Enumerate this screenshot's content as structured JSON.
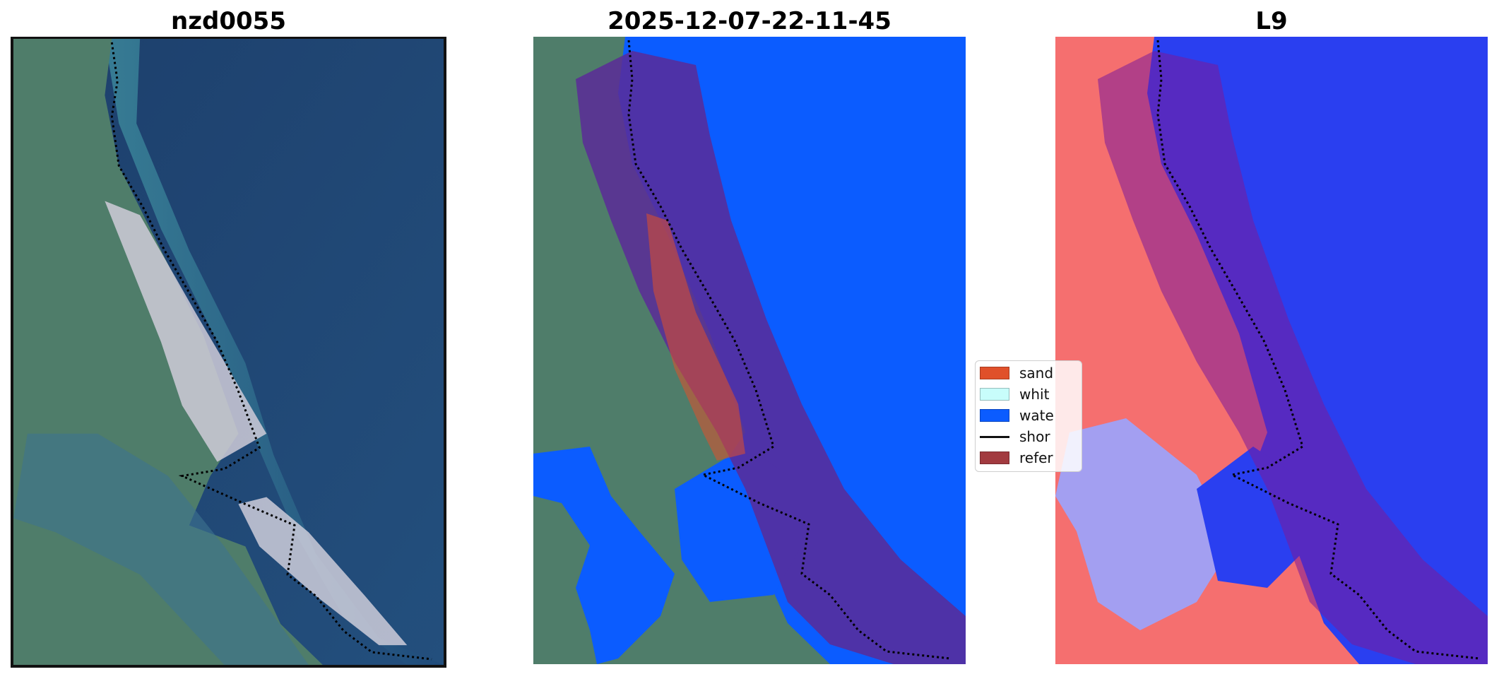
{
  "panels": [
    {
      "title": "nzd0055"
    },
    {
      "title": "2025-12-07-22-11-45"
    },
    {
      "title": "L9"
    }
  ],
  "legend": {
    "items": [
      {
        "label": "sand",
        "color": "#e0502a"
      },
      {
        "label": "whit",
        "color": "#c8fdfb"
      },
      {
        "label": "wate",
        "color": "#0b5cff"
      },
      {
        "label": "shor",
        "color": "#111111"
      },
      {
        "label": "refer",
        "color": "#a23a3f"
      }
    ]
  },
  "colors": {
    "ocean": "#1f4a7a",
    "land": "#4d7a67",
    "sand": "#d9d7e0",
    "water_class": "#0b5cff",
    "reference_buffer": "#5a2a98",
    "l9_land": "#f56f6f",
    "l9_water": "#2a3ff0"
  }
}
